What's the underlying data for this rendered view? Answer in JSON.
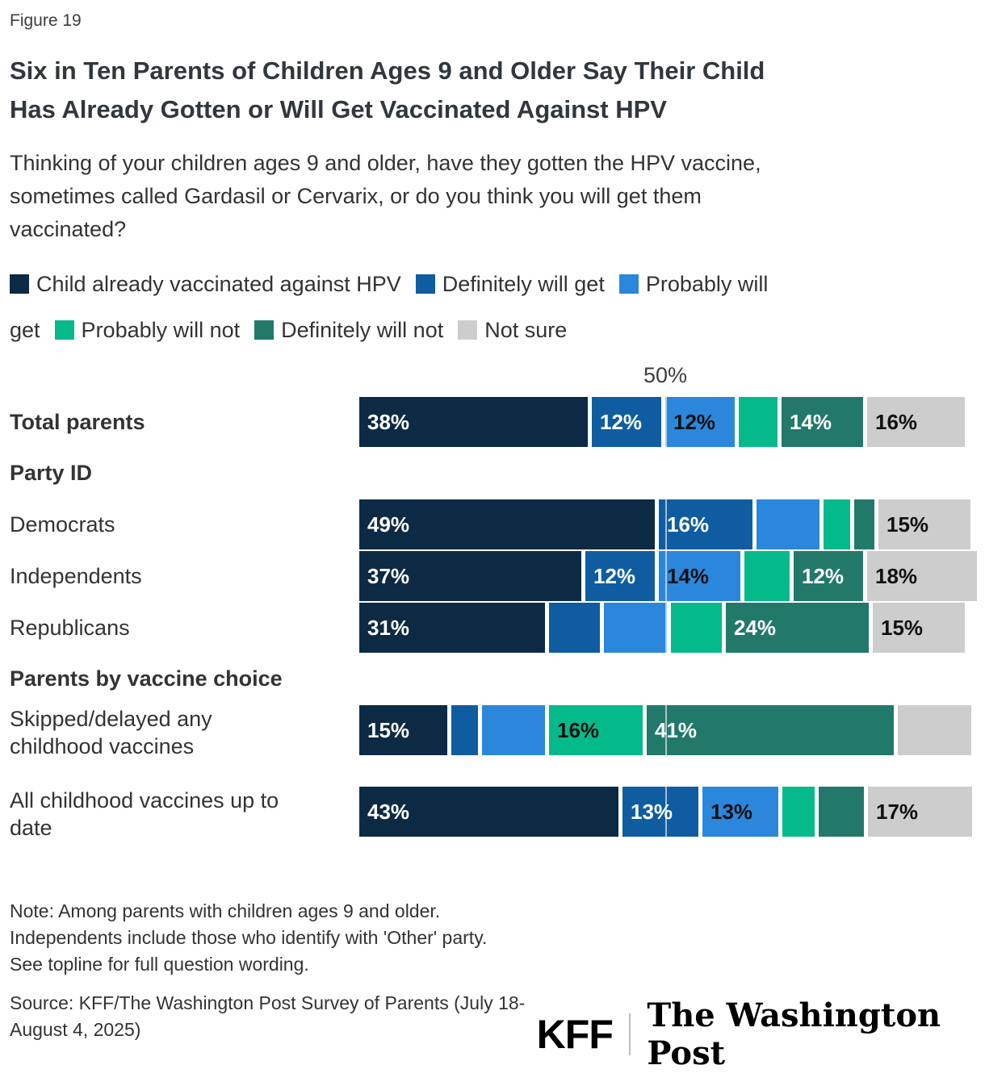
{
  "figure_label": "Figure 19",
  "title_lines": [
    "Six in Ten Parents of Children Ages 9 and Older Say Their Child",
    "Has Already Gotten or Will Get Vaccinated Against HPV"
  ],
  "subtitle_lines": [
    "Thinking of your children ages 9 and older, have they gotten the HPV vaccine,",
    "sometimes called Gardasil or Cervarix, or do you think you will get them",
    "vaccinated?"
  ],
  "legend": {
    "rows": [
      [
        {
          "series": "already",
          "text": "Child already vaccinated against HPV"
        },
        {
          "series": "definitely_will",
          "text": "Definitely will get"
        },
        {
          "series": "probably_will",
          "text": "Probably will"
        }
      ],
      [
        {
          "series": null,
          "text": "get"
        },
        {
          "series": "probably_not",
          "text": "Probably will not"
        },
        {
          "series": "definitely_not",
          "text": "Definitely will not"
        },
        {
          "series": "not_sure",
          "text": "Not sure"
        }
      ]
    ]
  },
  "axis": {
    "gridline_label": "50%",
    "gridline_value": 50,
    "xlim": [
      0,
      100
    ]
  },
  "chart_data": {
    "type": "bar",
    "orientation": "horizontal",
    "stacked": true,
    "unit": "percent",
    "series": [
      {
        "key": "already",
        "name": "Child already vaccinated against HPV",
        "color": "#0d2a44",
        "text_color": "#ffffff"
      },
      {
        "key": "definitely_will",
        "name": "Definitely will get",
        "color": "#0f5da0",
        "text_color": "#ffffff"
      },
      {
        "key": "probably_will",
        "name": "Probably will get",
        "color": "#2b87dc",
        "text_color": "#101010"
      },
      {
        "key": "probably_not",
        "name": "Probably will not",
        "color": "#04ba8a",
        "text_color": "#101010"
      },
      {
        "key": "definitely_not",
        "name": "Definitely will not",
        "color": "#22796a",
        "text_color": "#ffffff"
      },
      {
        "key": "not_sure",
        "name": "Not sure",
        "color": "#cdcdcd",
        "text_color": "#101010"
      }
    ],
    "groups": [
      {
        "header": null,
        "rows": [
          {
            "label_lines": [
              "Total parents"
            ],
            "bold": true,
            "values": [
              38,
              12,
              12,
              7,
              14,
              16
            ],
            "labels": [
              "38%",
              "12%",
              "12%",
              "",
              "14%",
              "16%"
            ]
          }
        ]
      },
      {
        "header": "Party ID",
        "rows": [
          {
            "label_lines": [
              "Democrats"
            ],
            "bold": false,
            "values": [
              49,
              16,
              11,
              5,
              4,
              15
            ],
            "labels": [
              "49%",
              "16%",
              "",
              "",
              "",
              "15%"
            ]
          },
          {
            "label_lines": [
              "Independents"
            ],
            "bold": false,
            "values": [
              37,
              12,
              14,
              8,
              12,
              18
            ],
            "labels": [
              "37%",
              "12%",
              "14%",
              "",
              "12%",
              "18%"
            ]
          },
          {
            "label_lines": [
              "Republicans"
            ],
            "bold": false,
            "values": [
              31,
              9,
              11,
              9,
              24,
              15
            ],
            "labels": [
              "31%",
              "",
              "",
              "",
              "24%",
              "15%"
            ]
          }
        ]
      },
      {
        "header": "Parents by vaccine choice",
        "rows": [
          {
            "label_lines": [
              "Skipped/delayed any",
              "childhood vaccines"
            ],
            "bold": false,
            "values": [
              15,
              5,
              11,
              16,
              41,
              12
            ],
            "labels": [
              "15%",
              "",
              "",
              "16%",
              "41%",
              ""
            ]
          },
          {
            "label_lines": [
              "All childhood vaccines up to",
              "date"
            ],
            "bold": false,
            "values": [
              43,
              13,
              13,
              6,
              8,
              17
            ],
            "labels": [
              "43%",
              "13%",
              "13%",
              "",
              "",
              "17%"
            ]
          }
        ]
      }
    ]
  },
  "note_lines": [
    "Note: Among parents with children ages 9 and older.",
    "Independents include those who identify with 'Other' party.",
    "See topline for full question wording."
  ],
  "source_lines": [
    "Source: KFF/The Washington Post Survey of Parents (July 18-",
    "August 4, 2025)"
  ],
  "branding": {
    "kff": "KFF",
    "wapo": "The Washington Post"
  }
}
